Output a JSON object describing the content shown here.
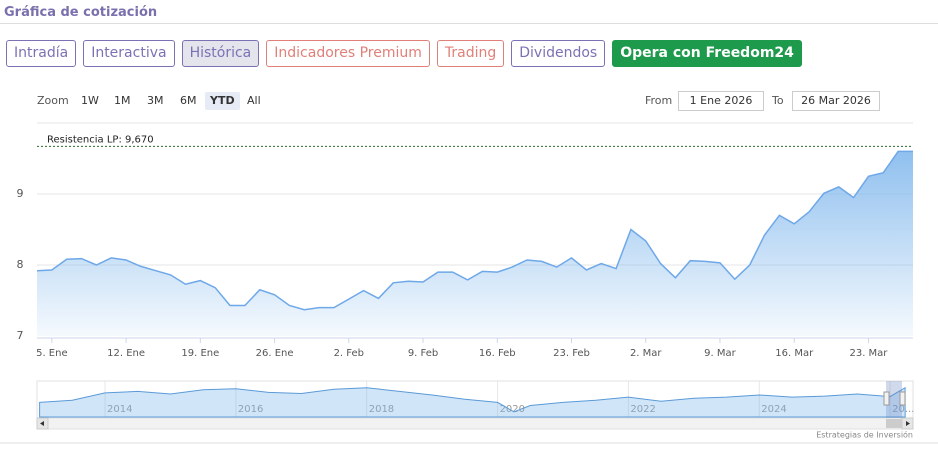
{
  "header": {
    "title": "Gráfica de cotización"
  },
  "tabs": [
    {
      "label": "Intradía",
      "color": "#7b72b5"
    },
    {
      "label": "Interactiva",
      "color": "#7b72b5"
    },
    {
      "label": "Histórica",
      "color": "#7b72b5",
      "selected": true
    },
    {
      "label": "Indicadores Premium",
      "color": "#e08079"
    },
    {
      "label": "Trading",
      "color": "#e08079"
    },
    {
      "label": "Dividendos",
      "color": "#7b72b5"
    },
    {
      "label": "Opera con Freedom24",
      "color": "#1d9a4c",
      "filled": true
    }
  ],
  "range_selector": {
    "zoom_label": "Zoom",
    "buttons": [
      "1W",
      "1M",
      "3M",
      "6M",
      "YTD",
      "All"
    ],
    "selected": 4,
    "from_label": "From",
    "from": "1 Ene 2026",
    "to_label": "To",
    "to": "26 Mar 2026"
  },
  "chart_data": {
    "type": "area",
    "categories": [
      "2026-01-02",
      "2026-01-05",
      "2026-01-06",
      "2026-01-07",
      "2026-01-08",
      "2026-01-09",
      "2026-01-12",
      "2026-01-13",
      "2026-01-14",
      "2026-01-15",
      "2026-01-16",
      "2026-01-19",
      "2026-01-20",
      "2026-01-21",
      "2026-01-22",
      "2026-01-23",
      "2026-01-26",
      "2026-01-27",
      "2026-01-28",
      "2026-01-29",
      "2026-01-30",
      "2026-02-02",
      "2026-02-03",
      "2026-02-04",
      "2026-02-05",
      "2026-02-06",
      "2026-02-09",
      "2026-02-10",
      "2026-02-11",
      "2026-02-12",
      "2026-02-13",
      "2026-02-16",
      "2026-02-17",
      "2026-02-18",
      "2026-02-19",
      "2026-02-20",
      "2026-02-23",
      "2026-02-24",
      "2026-02-25",
      "2026-02-26",
      "2026-02-27",
      "2026-03-02",
      "2026-03-03",
      "2026-03-04",
      "2026-03-05",
      "2026-03-06",
      "2026-03-09",
      "2026-03-10",
      "2026-03-11",
      "2026-03-12",
      "2026-03-13",
      "2026-03-16",
      "2026-03-17",
      "2026-03-18",
      "2026-03-19",
      "2026-03-20",
      "2026-03-23",
      "2026-03-24",
      "2026-03-25",
      "2026-03-26"
    ],
    "values": [
      7.92,
      7.93,
      8.08,
      8.09,
      8.0,
      8.1,
      8.07,
      7.98,
      7.92,
      7.86,
      7.73,
      7.78,
      7.68,
      7.43,
      7.43,
      7.65,
      7.58,
      7.43,
      7.37,
      7.4,
      7.4,
      7.52,
      7.64,
      7.53,
      7.75,
      7.77,
      7.76,
      7.9,
      7.9,
      7.79,
      7.91,
      7.9,
      7.97,
      8.07,
      8.05,
      7.97,
      8.1,
      7.93,
      8.02,
      7.95,
      8.5,
      8.34,
      8.02,
      7.82,
      8.06,
      8.05,
      8.03,
      7.8,
      8.0,
      8.42,
      8.7,
      8.58,
      8.75,
      9.01,
      9.1,
      8.95,
      9.25,
      9.3,
      9.6,
      9.6
    ],
    "color": "#6ea8e8",
    "ylim": [
      7,
      10
    ],
    "yticks": [
      7,
      8,
      9
    ],
    "grid": true,
    "xticks": [
      {
        "value": "2026-01-05",
        "label": "5. Ene"
      },
      {
        "value": "2026-01-12",
        "label": "12. Ene"
      },
      {
        "value": "2026-01-19",
        "label": "19. Ene"
      },
      {
        "value": "2026-01-26",
        "label": "26. Ene"
      },
      {
        "value": "2026-02-02",
        "label": "2. Feb"
      },
      {
        "value": "2026-02-09",
        "label": "9. Feb"
      },
      {
        "value": "2026-02-16",
        "label": "16. Feb"
      },
      {
        "value": "2026-02-23",
        "label": "23. Feb"
      },
      {
        "value": "2026-03-02",
        "label": "2. Mar"
      },
      {
        "value": "2026-03-09",
        "label": "9. Mar"
      },
      {
        "value": "2026-03-16",
        "label": "16. Mar"
      },
      {
        "value": "2026-03-23",
        "label": "23. Mar"
      }
    ],
    "annotation": {
      "label": "Resistencia LP: 9,670",
      "value": 9.67,
      "color": "#2e6b2e"
    },
    "navigator": {
      "type": "area",
      "x": [
        2013.0,
        2013.5,
        2014.0,
        2014.5,
        2015.0,
        2015.5,
        2016.0,
        2016.5,
        2017.0,
        2017.5,
        2018.0,
        2018.5,
        2019.0,
        2019.5,
        2020.0,
        2020.25,
        2020.5,
        2021.0,
        2021.5,
        2022.0,
        2022.5,
        2023.0,
        2023.5,
        2024.0,
        2024.5,
        2025.0,
        2025.5,
        2026.0,
        2026.23
      ],
      "values": [
        6.8,
        7.2,
        8.6,
        8.9,
        8.4,
        9.2,
        9.4,
        8.7,
        8.5,
        9.3,
        9.6,
        8.9,
        8.2,
        7.4,
        6.8,
        5.0,
        6.2,
        6.8,
        7.2,
        7.8,
        7.0,
        7.6,
        7.8,
        8.2,
        7.8,
        8.0,
        8.4,
        7.9,
        9.6
      ],
      "xlim": [
        2012.96,
        2026.35
      ],
      "ylim": [
        4,
        10.5
      ],
      "xticks": [
        2014,
        2016,
        2018,
        2020,
        2022,
        2024,
        {
          "value": 2026,
          "label": "20..."
        }
      ]
    }
  },
  "credit": "Estrategias de Inversión"
}
